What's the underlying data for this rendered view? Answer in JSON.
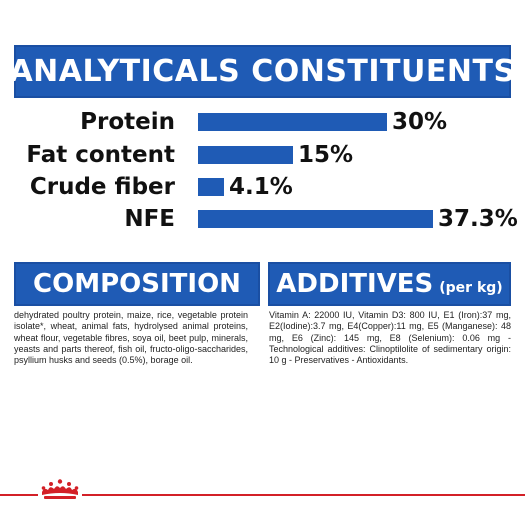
{
  "analytical": {
    "title": "ANALYTICALS CONSTITUENTS",
    "rows": [
      {
        "label": "Protein",
        "value_text": "30%",
        "value": 30
      },
      {
        "label": "Fat content",
        "value_text": "15%",
        "value": 15
      },
      {
        "label": "Crude fiber",
        "value_text": "4.1%",
        "value": 4.1
      },
      {
        "label": "NFE",
        "value_text": "37.3%",
        "value": 37.3
      }
    ]
  },
  "composition": {
    "title": "COMPOSITION",
    "text": "dehydrated poultry protein, maize, rice, vegetable protein isolate*, wheat, animal fats, hydrolysed animal proteins, wheat flour, vegetable fibres, soya oil, beet pulp, minerals, yeasts and parts thereof, fish oil, fructo-oligo-saccharides, psyllium husks and seeds (0.5%), borage oil."
  },
  "additives": {
    "title": "ADDITIVES",
    "unit": "(per kg)",
    "text": "Vitamin A: 22000 IU, Vitamin D3: 800 IU, E1 (Iron):37 mg, E2(Iodine):3.7 mg, E4(Copper):11 mg, E5 (Manganese): 48 mg, E6 (Zinc): 145 mg, E8 (Selenium): 0.06 mg -Technological additives: Clinoptilolite of sedimentary origin: 10 g - Preservatives - Antioxidants."
  },
  "colors": {
    "brand_blue": "#1f5bb5",
    "brand_red": "#d32027"
  },
  "icons": {
    "logo": "crown-icon"
  }
}
